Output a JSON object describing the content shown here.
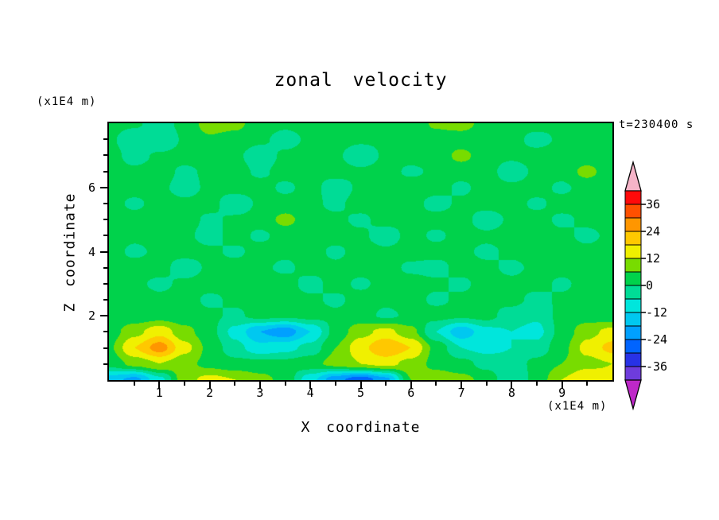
{
  "chart_data": {
    "type": "heatmap",
    "title": "zonal velocity",
    "timestamp": "t=230400 s",
    "xlabel": "X coordinate",
    "ylabel": "Z coordinate",
    "x_unit": "(x1E4 m)",
    "y_unit": "(x1E4 m)",
    "x_range": [
      0,
      10
    ],
    "z_range": [
      0,
      8
    ],
    "x_ticks": {
      "major": [
        1,
        2,
        3,
        4,
        5,
        6,
        7,
        8,
        9
      ],
      "minor": [
        0.5,
        1.5,
        2.5,
        3.5,
        4.5,
        5.5,
        6.5,
        7.5,
        8.5,
        9.5
      ]
    },
    "y_ticks": {
      "major": [
        2,
        4,
        6
      ],
      "minor": [
        0.5,
        1,
        1.5,
        2.5,
        3,
        3.5,
        4.5,
        5,
        5.5,
        6.5,
        7,
        7.5
      ]
    },
    "contour_interval": 6,
    "levels": [
      -42,
      -36,
      -30,
      -24,
      -18,
      -12,
      -6,
      0,
      6,
      12,
      18,
      24,
      30,
      36,
      42
    ],
    "band_colors": [
      "#BE28C8",
      "#6E3CDC",
      "#2832E6",
      "#0064FF",
      "#00A0FF",
      "#00C8F0",
      "#00E6DC",
      "#00DC96",
      "#00D24B",
      "#78DC00",
      "#F0F000",
      "#FFC800",
      "#FF9600",
      "#FF5000",
      "#FF0A0A",
      "#F5B4C8"
    ],
    "colorbar_labels": [
      "36",
      "24",
      "12",
      "0",
      "-12",
      "-24",
      "-36"
    ],
    "grid": {
      "x_start": 0,
      "x_step": 0.5,
      "z_start": 8,
      "z_step": -0.5,
      "values": [
        [
          2,
          1,
          -3,
          2,
          9,
          8,
          2,
          1,
          2,
          2,
          1,
          1,
          2,
          7,
          9,
          3,
          2,
          2,
          1,
          2,
          2
        ],
        [
          1,
          -4,
          -6,
          1,
          5,
          3,
          1,
          -2,
          1,
          2,
          1,
          1,
          3,
          3,
          2,
          1,
          2,
          -2,
          1,
          2,
          2
        ],
        [
          2,
          -2,
          1,
          2,
          2,
          1,
          -3,
          1,
          2,
          1,
          -4,
          1,
          2,
          2,
          8,
          2,
          1,
          2,
          3,
          2,
          1
        ],
        [
          2,
          1,
          2,
          -1,
          1,
          2,
          -1,
          2,
          1,
          2,
          1,
          2,
          -1,
          1,
          2,
          2,
          -3,
          1,
          2,
          8,
          2
        ],
        [
          1,
          2,
          1,
          -2,
          1,
          2,
          2,
          -1,
          2,
          -3,
          1,
          2,
          3,
          2,
          -1,
          2,
          1,
          2,
          -1,
          2,
          1
        ],
        [
          2,
          -1,
          2,
          1,
          2,
          -4,
          1,
          2,
          1,
          -1,
          2,
          1,
          2,
          -2,
          1,
          2,
          2,
          -1,
          2,
          1,
          2
        ],
        [
          1,
          2,
          3,
          2,
          -1,
          1,
          2,
          8,
          2,
          1,
          -1,
          2,
          1,
          2,
          2,
          -3,
          1,
          2,
          -1,
          1,
          2
        ],
        [
          2,
          1,
          2,
          1,
          -2,
          2,
          -1,
          2,
          1,
          2,
          1,
          -3,
          2,
          -1,
          2,
          1,
          2,
          2,
          1,
          -1,
          1
        ],
        [
          2,
          -1,
          1,
          2,
          1,
          -1,
          2,
          1,
          2,
          -1,
          2,
          1,
          2,
          2,
          1,
          -1,
          1,
          2,
          2,
          1,
          2
        ],
        [
          1,
          2,
          2,
          -3,
          1,
          2,
          1,
          -1,
          2,
          1,
          2,
          2,
          -1,
          -2,
          2,
          1,
          -1,
          1,
          2,
          2,
          1
        ],
        [
          2,
          1,
          -1,
          1,
          2,
          1,
          2,
          2,
          -2,
          2,
          -1,
          2,
          2,
          1,
          -1,
          2,
          1,
          2,
          -1,
          2,
          2
        ],
        [
          2,
          2,
          1,
          2,
          -1,
          1,
          1,
          2,
          1,
          -1,
          2,
          1,
          2,
          -1,
          1,
          1,
          2,
          -2,
          1,
          2,
          1
        ],
        [
          1,
          2,
          3,
          2,
          1,
          -1,
          2,
          1,
          2,
          1,
          2,
          -1,
          1,
          2,
          1,
          2,
          -3,
          -5,
          2,
          3,
          2
        ],
        [
          3,
          10,
          16,
          8,
          2,
          -8,
          -18,
          -22,
          -12,
          2,
          10,
          14,
          8,
          -6,
          -16,
          -8,
          -6,
          -8,
          2,
          10,
          14
        ],
        [
          5,
          18,
          27,
          14,
          4,
          -4,
          -10,
          -8,
          -4,
          6,
          16,
          24,
          18,
          4,
          -6,
          -8,
          -6,
          -4,
          4,
          14,
          20
        ],
        [
          2,
          8,
          12,
          8,
          4,
          2,
          2,
          2,
          4,
          8,
          12,
          14,
          10,
          4,
          2,
          -2,
          -4,
          2,
          6,
          10,
          12
        ],
        [
          -15,
          -20,
          -8,
          10,
          14,
          12,
          8,
          4,
          -10,
          -22,
          -28,
          -20,
          6,
          10,
          8,
          4,
          -6,
          2,
          12,
          18,
          14
        ]
      ]
    }
  }
}
